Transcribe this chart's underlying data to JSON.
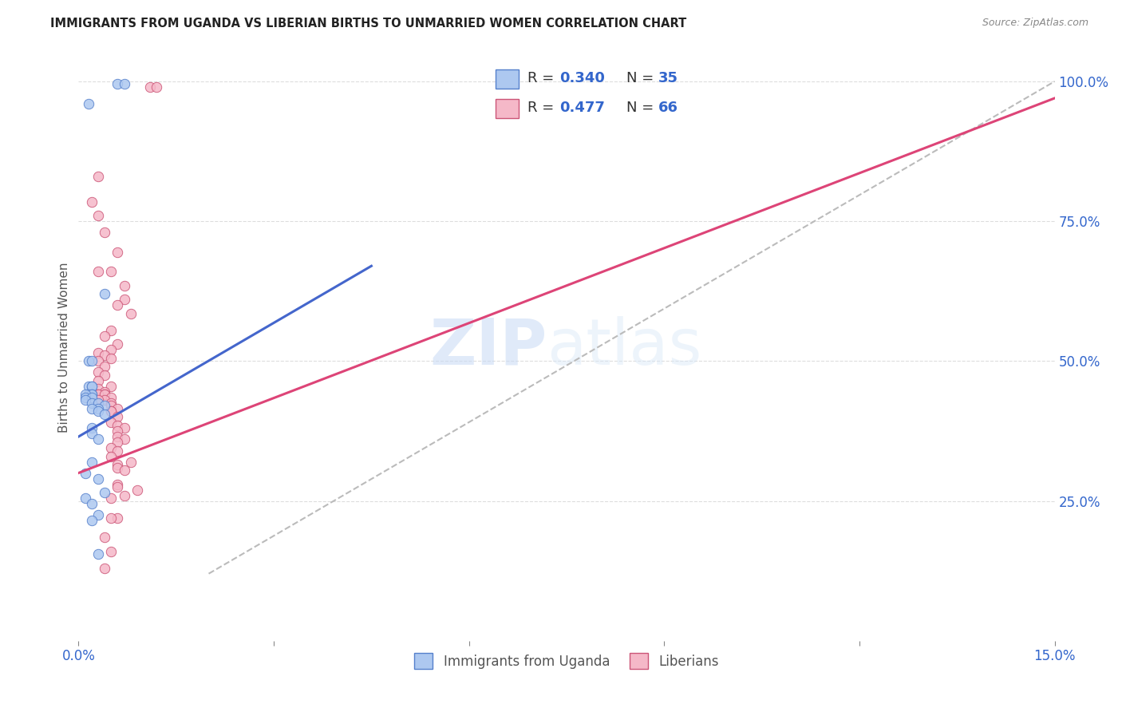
{
  "title": "IMMIGRANTS FROM UGANDA VS LIBERIAN BIRTHS TO UNMARRIED WOMEN CORRELATION CHART",
  "source": "Source: ZipAtlas.com",
  "legend_blue_label": "Immigrants from Uganda",
  "legend_pink_label": "Liberians",
  "watermark_zip": "ZIP",
  "watermark_atlas": "atlas",
  "blue_color": "#adc8f0",
  "pink_color": "#f5b8c8",
  "blue_edge_color": "#5580cc",
  "pink_edge_color": "#cc5577",
  "blue_line_color": "#4466cc",
  "pink_line_color": "#dd4477",
  "dashed_line_color": "#bbbbbb",
  "bg_color": "#ffffff",
  "grid_color": "#dddddd",
  "tick_color": "#3366cc",
  "ylabel_color": "#555555",
  "title_color": "#222222",
  "source_color": "#888888",
  "blue_scatter": [
    [
      0.0015,
      0.96
    ],
    [
      0.004,
      0.62
    ],
    [
      0.006,
      0.995
    ],
    [
      0.007,
      0.995
    ],
    [
      0.0015,
      0.5
    ],
    [
      0.002,
      0.5
    ],
    [
      0.0015,
      0.455
    ],
    [
      0.002,
      0.455
    ],
    [
      0.002,
      0.455
    ],
    [
      0.0015,
      0.44
    ],
    [
      0.002,
      0.44
    ],
    [
      0.002,
      0.44
    ],
    [
      0.001,
      0.44
    ],
    [
      0.001,
      0.435
    ],
    [
      0.002,
      0.435
    ],
    [
      0.001,
      0.43
    ],
    [
      0.002,
      0.425
    ],
    [
      0.003,
      0.425
    ],
    [
      0.004,
      0.42
    ],
    [
      0.003,
      0.415
    ],
    [
      0.002,
      0.415
    ],
    [
      0.003,
      0.41
    ],
    [
      0.004,
      0.405
    ],
    [
      0.002,
      0.38
    ],
    [
      0.002,
      0.37
    ],
    [
      0.003,
      0.36
    ],
    [
      0.002,
      0.32
    ],
    [
      0.001,
      0.3
    ],
    [
      0.003,
      0.29
    ],
    [
      0.004,
      0.265
    ],
    [
      0.001,
      0.255
    ],
    [
      0.002,
      0.245
    ],
    [
      0.003,
      0.225
    ],
    [
      0.002,
      0.215
    ],
    [
      0.003,
      0.155
    ]
  ],
  "pink_scatter": [
    [
      0.011,
      0.99
    ],
    [
      0.012,
      0.99
    ],
    [
      0.003,
      0.83
    ],
    [
      0.002,
      0.785
    ],
    [
      0.003,
      0.76
    ],
    [
      0.004,
      0.73
    ],
    [
      0.006,
      0.695
    ],
    [
      0.003,
      0.66
    ],
    [
      0.005,
      0.66
    ],
    [
      0.007,
      0.635
    ],
    [
      0.007,
      0.61
    ],
    [
      0.006,
      0.6
    ],
    [
      0.008,
      0.585
    ],
    [
      0.005,
      0.555
    ],
    [
      0.004,
      0.545
    ],
    [
      0.006,
      0.53
    ],
    [
      0.005,
      0.52
    ],
    [
      0.003,
      0.515
    ],
    [
      0.004,
      0.51
    ],
    [
      0.005,
      0.505
    ],
    [
      0.003,
      0.5
    ],
    [
      0.004,
      0.49
    ],
    [
      0.003,
      0.48
    ],
    [
      0.004,
      0.475
    ],
    [
      0.003,
      0.465
    ],
    [
      0.005,
      0.455
    ],
    [
      0.003,
      0.45
    ],
    [
      0.004,
      0.445
    ],
    [
      0.002,
      0.445
    ],
    [
      0.003,
      0.44
    ],
    [
      0.004,
      0.44
    ],
    [
      0.003,
      0.44
    ],
    [
      0.004,
      0.44
    ],
    [
      0.005,
      0.435
    ],
    [
      0.004,
      0.43
    ],
    [
      0.003,
      0.43
    ],
    [
      0.005,
      0.425
    ],
    [
      0.005,
      0.42
    ],
    [
      0.006,
      0.415
    ],
    [
      0.005,
      0.41
    ],
    [
      0.005,
      0.41
    ],
    [
      0.006,
      0.4
    ],
    [
      0.005,
      0.39
    ],
    [
      0.006,
      0.385
    ],
    [
      0.007,
      0.38
    ],
    [
      0.006,
      0.375
    ],
    [
      0.006,
      0.365
    ],
    [
      0.007,
      0.36
    ],
    [
      0.006,
      0.355
    ],
    [
      0.005,
      0.345
    ],
    [
      0.006,
      0.34
    ],
    [
      0.005,
      0.33
    ],
    [
      0.008,
      0.32
    ],
    [
      0.006,
      0.315
    ],
    [
      0.006,
      0.31
    ],
    [
      0.007,
      0.305
    ],
    [
      0.006,
      0.28
    ],
    [
      0.006,
      0.275
    ],
    [
      0.007,
      0.26
    ],
    [
      0.005,
      0.255
    ],
    [
      0.006,
      0.22
    ],
    [
      0.005,
      0.22
    ],
    [
      0.004,
      0.185
    ],
    [
      0.005,
      0.16
    ],
    [
      0.004,
      0.13
    ],
    [
      0.009,
      0.27
    ]
  ],
  "xmin": 0.0,
  "xmax": 0.15,
  "ymin": 0.0,
  "ymax": 1.05,
  "x_tick_values": [
    0.0,
    0.03,
    0.06,
    0.09,
    0.12,
    0.15
  ],
  "y_tick_values": [
    0.25,
    0.5,
    0.75,
    1.0
  ],
  "blue_line_x": [
    0.0,
    0.045
  ],
  "blue_line_y": [
    0.365,
    0.67
  ],
  "pink_line_x": [
    0.0,
    0.15
  ],
  "pink_line_y": [
    0.3,
    0.97
  ],
  "dash_line_x": [
    0.02,
    0.15
  ],
  "dash_line_y": [
    0.12,
    1.0
  ]
}
